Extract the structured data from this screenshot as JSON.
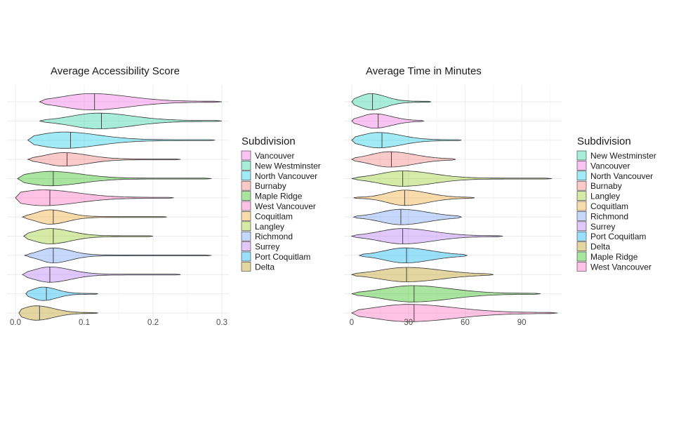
{
  "chart_data": [
    {
      "type": "violin",
      "title": "Average Accessibility Score",
      "xlabel": "",
      "ylabel": "",
      "xlim": [
        0,
        0.3
      ],
      "x_ticks": [
        "0.0",
        "0.1",
        "0.2",
        "0.3"
      ],
      "x_tick_values": [
        0,
        0.1,
        0.2,
        0.3
      ],
      "grid": true,
      "legend": {
        "title": "Subdivision",
        "placement": "right",
        "entries": [
          "Vancouver",
          "New Westminster",
          "North Vancouver",
          "Burnaby",
          "Maple Ridge",
          "West Vancouver",
          "Coquitlam",
          "Langley",
          "Richmond",
          "Surrey",
          "Port Coquitlam",
          "Delta"
        ]
      },
      "series": [
        {
          "name": "Vancouver",
          "color": "#f27de5",
          "min": 0.035,
          "max": 0.3,
          "median": 0.115,
          "mode": 0.11,
          "half_width": 0.85,
          "spread": 0.055
        },
        {
          "name": "New Westminster",
          "color": "#3ed6a9",
          "min": 0.035,
          "max": 0.3,
          "median": 0.125,
          "mode": 0.12,
          "half_width": 0.82,
          "spread": 0.05
        },
        {
          "name": "North Vancouver",
          "color": "#2fd3ec",
          "min": 0.018,
          "max": 0.29,
          "median": 0.08,
          "mode": 0.07,
          "half_width": 0.85,
          "spread": 0.05
        },
        {
          "name": "Burnaby",
          "color": "#f58a8a",
          "min": 0.018,
          "max": 0.24,
          "median": 0.075,
          "mode": 0.07,
          "half_width": 0.7,
          "spread": 0.035
        },
        {
          "name": "Maple Ridge",
          "color": "#42c62c",
          "min": 0.003,
          "max": 0.285,
          "median": 0.055,
          "mode": 0.05,
          "half_width": 0.75,
          "spread": 0.045
        },
        {
          "name": "West Vancouver",
          "color": "#fd77c4",
          "min": 0.0,
          "max": 0.23,
          "median": 0.05,
          "mode": 0.04,
          "half_width": 0.82,
          "spread": 0.05
        },
        {
          "name": "Coquitlam",
          "color": "#f1b246",
          "min": 0.01,
          "max": 0.22,
          "median": 0.055,
          "mode": 0.05,
          "half_width": 0.75,
          "spread": 0.025
        },
        {
          "name": "Langley",
          "color": "#9fd03a",
          "min": 0.012,
          "max": 0.2,
          "median": 0.055,
          "mode": 0.05,
          "half_width": 0.8,
          "spread": 0.03
        },
        {
          "name": "Richmond",
          "color": "#7fa6f3",
          "min": 0.013,
          "max": 0.285,
          "median": 0.055,
          "mode": 0.055,
          "half_width": 0.78,
          "spread": 0.025
        },
        {
          "name": "Surrey",
          "color": "#bd85f5",
          "min": 0.01,
          "max": 0.24,
          "median": 0.05,
          "mode": 0.05,
          "half_width": 0.8,
          "spread": 0.03
        },
        {
          "name": "Port Coquitlam",
          "color": "#22baf2",
          "min": 0.015,
          "max": 0.12,
          "median": 0.045,
          "mode": 0.04,
          "half_width": 0.7,
          "spread": 0.02
        },
        {
          "name": "Delta",
          "color": "#c4a52f",
          "min": 0.005,
          "max": 0.12,
          "median": 0.035,
          "mode": 0.03,
          "half_width": 0.75,
          "spread": 0.025
        }
      ]
    },
    {
      "type": "violin",
      "title": "Average Time in Minutes",
      "xlabel": "",
      "ylabel": "",
      "xlim": [
        0,
        110
      ],
      "x_ticks": [
        "0",
        "30",
        "60",
        "90"
      ],
      "x_tick_values": [
        0,
        30,
        60,
        90
      ],
      "grid": true,
      "legend": {
        "title": "Subdivision",
        "placement": "right",
        "entries": [
          "New Westminster",
          "Vancouver",
          "North Vancouver",
          "Burnaby",
          "Langley",
          "Coquitlam",
          "Richmond",
          "Surrey",
          "Port Coquitlam",
          "Delta",
          "Maple Ridge",
          "West Vancouver"
        ]
      },
      "series": [
        {
          "name": "New Westminster",
          "color": "#3ed6a9",
          "min": 0,
          "max": 42,
          "median": 11,
          "mode": 10,
          "half_width": 0.85,
          "spread": 8
        },
        {
          "name": "Vancouver",
          "color": "#f27de5",
          "min": 0,
          "max": 38,
          "median": 14,
          "mode": 12,
          "half_width": 0.75,
          "spread": 9
        },
        {
          "name": "North Vancouver",
          "color": "#2fd3ec",
          "min": 0,
          "max": 58,
          "median": 16,
          "mode": 14,
          "half_width": 0.8,
          "spread": 12
        },
        {
          "name": "Burnaby",
          "color": "#f58a8a",
          "min": 0,
          "max": 55,
          "median": 21,
          "mode": 20,
          "half_width": 0.8,
          "spread": 13
        },
        {
          "name": "Langley",
          "color": "#9fd03a",
          "min": 0,
          "max": 106,
          "median": 27,
          "mode": 27,
          "half_width": 0.8,
          "spread": 16
        },
        {
          "name": "Coquitlam",
          "color": "#f1b246",
          "min": 1,
          "max": 65,
          "median": 28,
          "mode": 28,
          "half_width": 0.8,
          "spread": 12
        },
        {
          "name": "Richmond",
          "color": "#7fa6f3",
          "min": 1,
          "max": 58,
          "median": 26,
          "mode": 26,
          "half_width": 0.8,
          "spread": 14
        },
        {
          "name": "Surrey",
          "color": "#bd85f5",
          "min": 0,
          "max": 80,
          "median": 27,
          "mode": 27,
          "half_width": 0.8,
          "spread": 16
        },
        {
          "name": "Port Coquitlam",
          "color": "#22baf2",
          "min": 4,
          "max": 61,
          "median": 29,
          "mode": 28,
          "half_width": 0.78,
          "spread": 14
        },
        {
          "name": "Delta",
          "color": "#c4a52f",
          "min": 0,
          "max": 75,
          "median": 29,
          "mode": 29,
          "half_width": 0.75,
          "spread": 18
        },
        {
          "name": "Maple Ridge",
          "color": "#42c62c",
          "min": 0,
          "max": 100,
          "median": 33,
          "mode": 32,
          "half_width": 0.85,
          "spread": 20
        },
        {
          "name": "West Vancouver",
          "color": "#fd77c4",
          "min": 0,
          "max": 109,
          "median": 33,
          "mode": 30,
          "half_width": 0.9,
          "spread": 24
        }
      ]
    }
  ]
}
